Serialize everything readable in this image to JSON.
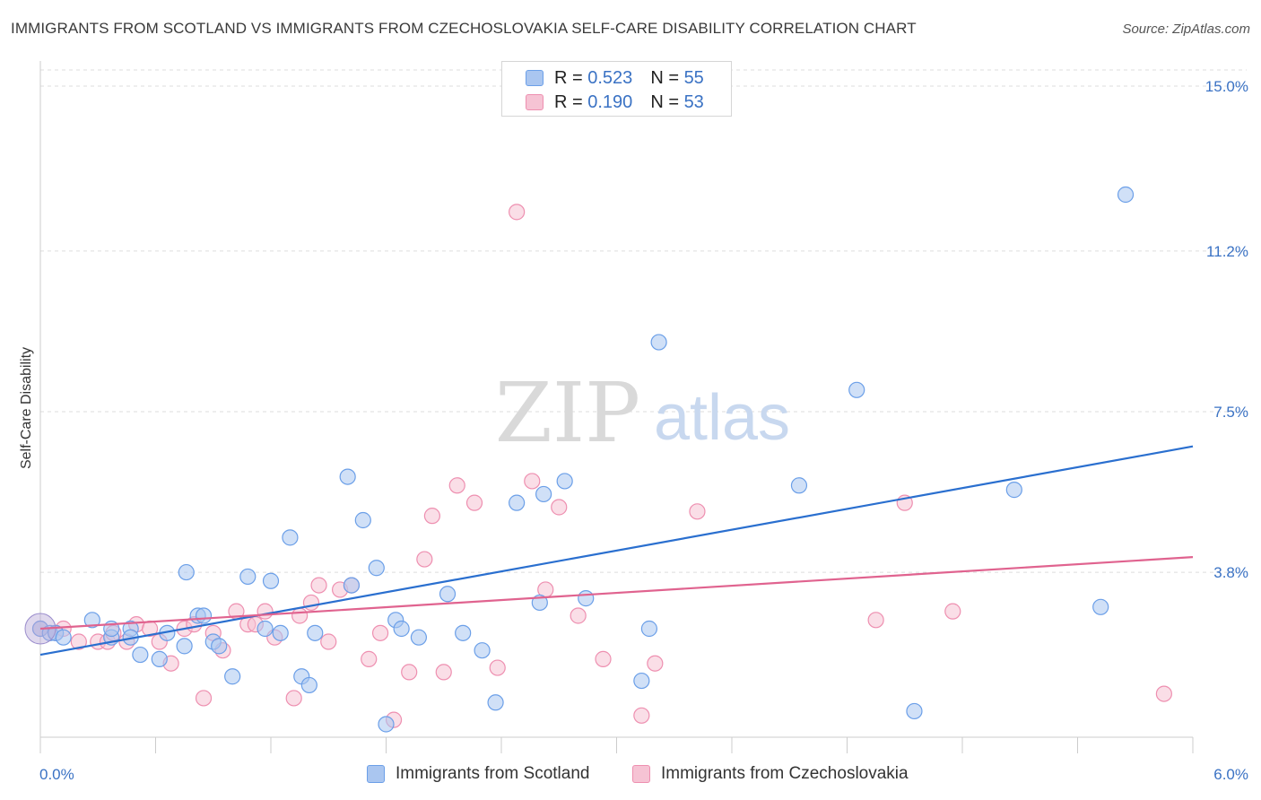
{
  "title": "IMMIGRANTS FROM SCOTLAND VS IMMIGRANTS FROM CZECHOSLOVAKIA SELF-CARE DISABILITY CORRELATION CHART",
  "source": "Source: ZipAtlas.com",
  "watermark": {
    "zip": "ZIP",
    "atlas": "atlas"
  },
  "legend": {
    "r_label": "R =",
    "n_label": "N =",
    "rows": [
      {
        "r": "0.523",
        "n": "55"
      },
      {
        "r": "0.190",
        "n": "53"
      }
    ]
  },
  "chart_data": {
    "type": "scatter",
    "ylabel": "Self-Care Disability",
    "xlim": [
      0,
      6.0
    ],
    "ylim": [
      0,
      15.0
    ],
    "x_tick_labels": [
      "0.0%",
      "6.0%"
    ],
    "y_ticks": [
      3.8,
      7.5,
      11.2,
      15.0
    ],
    "y_tick_labels": [
      "3.8%",
      "7.5%",
      "11.2%",
      "15.0%"
    ],
    "grid": "horizontal dashed",
    "legend_placement": "top-center",
    "series": [
      {
        "name": "Immigrants from Scotland",
        "color": "#6b9fe8",
        "fill": "#aac6f0",
        "line_color": "#2a6fcf",
        "trend": [
          [
            0.0,
            1.9
          ],
          [
            6.0,
            6.7
          ]
        ],
        "points": [
          [
            0.0,
            2.5
          ],
          [
            0.05,
            2.4
          ],
          [
            0.08,
            2.4
          ],
          [
            0.12,
            2.3
          ],
          [
            0.27,
            2.7
          ],
          [
            0.37,
            2.3
          ],
          [
            0.37,
            2.5
          ],
          [
            0.47,
            2.5
          ],
          [
            0.47,
            2.3
          ],
          [
            0.52,
            1.9
          ],
          [
            0.62,
            1.8
          ],
          [
            0.66,
            2.4
          ],
          [
            0.75,
            2.1
          ],
          [
            0.76,
            3.8
          ],
          [
            0.82,
            2.8
          ],
          [
            0.85,
            2.8
          ],
          [
            0.9,
            2.2
          ],
          [
            0.93,
            2.1
          ],
          [
            1.0,
            1.4
          ],
          [
            1.08,
            3.7
          ],
          [
            1.17,
            2.5
          ],
          [
            1.2,
            3.6
          ],
          [
            1.25,
            2.4
          ],
          [
            1.3,
            4.6
          ],
          [
            1.36,
            1.4
          ],
          [
            1.4,
            1.2
          ],
          [
            1.43,
            2.4
          ],
          [
            1.6,
            6.0
          ],
          [
            1.62,
            3.5
          ],
          [
            1.68,
            5.0
          ],
          [
            1.75,
            3.9
          ],
          [
            1.8,
            0.3
          ],
          [
            1.85,
            2.7
          ],
          [
            1.88,
            2.5
          ],
          [
            1.97,
            2.3
          ],
          [
            2.12,
            3.3
          ],
          [
            2.2,
            2.4
          ],
          [
            2.3,
            2.0
          ],
          [
            2.37,
            0.8
          ],
          [
            2.48,
            5.4
          ],
          [
            2.6,
            3.1
          ],
          [
            2.62,
            5.6
          ],
          [
            2.73,
            5.9
          ],
          [
            2.84,
            3.2
          ],
          [
            3.13,
            1.3
          ],
          [
            3.17,
            2.5
          ],
          [
            3.22,
            9.1
          ],
          [
            3.95,
            5.8
          ],
          [
            4.25,
            8.0
          ],
          [
            4.55,
            0.6
          ],
          [
            5.07,
            5.7
          ],
          [
            5.52,
            3.0
          ],
          [
            5.65,
            12.5
          ]
        ]
      },
      {
        "name": "Immigrants from Czechoslovakia",
        "color": "#ee8fb0",
        "fill": "#f6c3d4",
        "line_color": "#e0638f",
        "trend": [
          [
            0.0,
            2.5
          ],
          [
            6.0,
            4.15
          ]
        ],
        "points": [
          [
            0.0,
            2.5
          ],
          [
            0.08,
            2.4
          ],
          [
            0.12,
            2.5
          ],
          [
            0.2,
            2.2
          ],
          [
            0.3,
            2.2
          ],
          [
            0.35,
            2.2
          ],
          [
            0.38,
            2.4
          ],
          [
            0.45,
            2.2
          ],
          [
            0.5,
            2.6
          ],
          [
            0.57,
            2.5
          ],
          [
            0.62,
            2.2
          ],
          [
            0.68,
            1.7
          ],
          [
            0.75,
            2.5
          ],
          [
            0.8,
            2.6
          ],
          [
            0.85,
            0.9
          ],
          [
            0.9,
            2.4
          ],
          [
            0.95,
            2.0
          ],
          [
            1.02,
            2.9
          ],
          [
            1.08,
            2.6
          ],
          [
            1.12,
            2.6
          ],
          [
            1.17,
            2.9
          ],
          [
            1.22,
            2.3
          ],
          [
            1.32,
            0.9
          ],
          [
            1.35,
            2.8
          ],
          [
            1.41,
            3.1
          ],
          [
            1.45,
            3.5
          ],
          [
            1.5,
            2.2
          ],
          [
            1.56,
            3.4
          ],
          [
            1.62,
            3.5
          ],
          [
            1.71,
            1.8
          ],
          [
            1.77,
            2.4
          ],
          [
            1.84,
            0.4
          ],
          [
            1.92,
            1.5
          ],
          [
            2.0,
            4.1
          ],
          [
            2.04,
            5.1
          ],
          [
            2.1,
            1.5
          ],
          [
            2.17,
            5.8
          ],
          [
            2.26,
            5.4
          ],
          [
            2.38,
            1.6
          ],
          [
            2.48,
            12.1
          ],
          [
            2.56,
            5.9
          ],
          [
            2.63,
            3.4
          ],
          [
            2.7,
            5.3
          ],
          [
            2.8,
            2.8
          ],
          [
            2.93,
            1.8
          ],
          [
            3.13,
            0.5
          ],
          [
            3.2,
            1.7
          ],
          [
            3.42,
            5.2
          ],
          [
            4.35,
            2.7
          ],
          [
            4.5,
            5.4
          ],
          [
            4.75,
            2.9
          ],
          [
            5.85,
            1.0
          ]
        ]
      }
    ]
  }
}
